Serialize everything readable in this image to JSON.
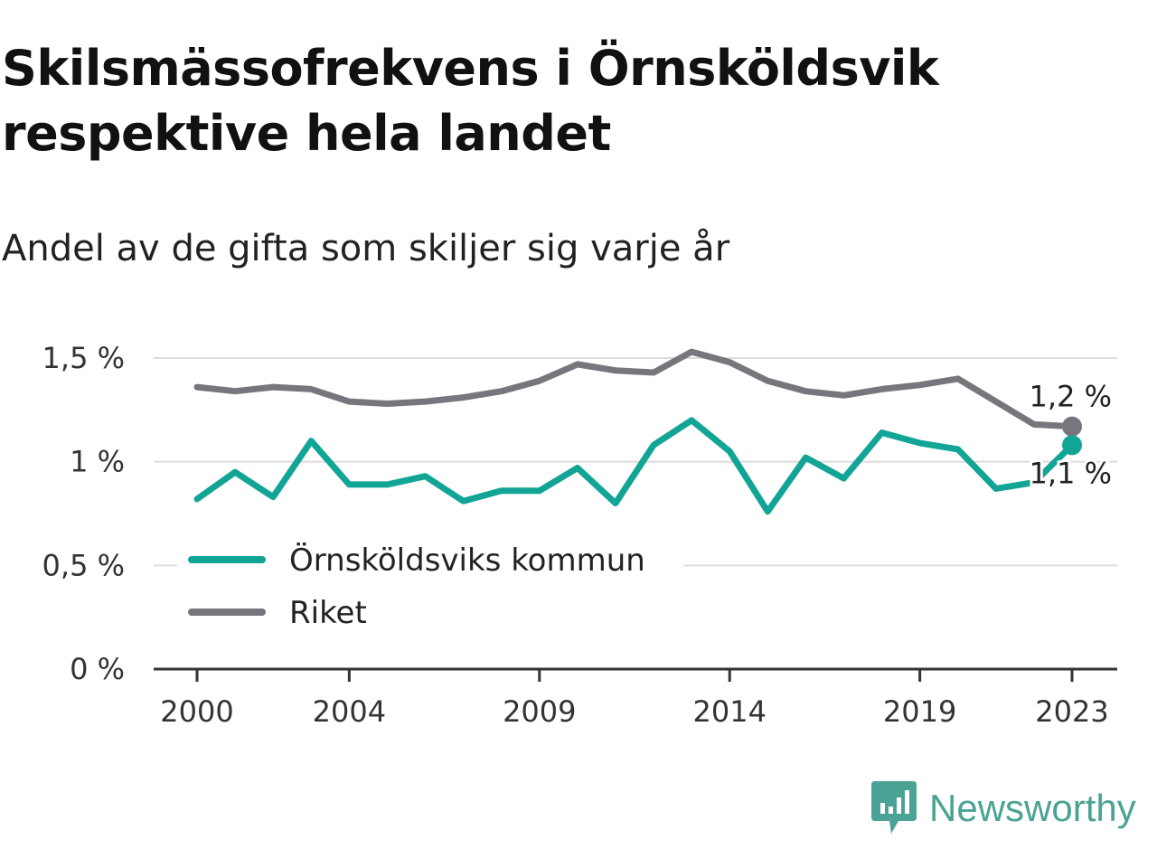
{
  "title": "Skilsmässofrekvens i Örnsköldsvik respektive hela landet",
  "subtitle": "Andel av de gifta som skiljer sig varje år",
  "brand": "Newsworthy",
  "chart_data": {
    "type": "line",
    "x": [
      2000,
      2001,
      2002,
      2003,
      2004,
      2005,
      2006,
      2007,
      2008,
      2009,
      2010,
      2011,
      2012,
      2013,
      2014,
      2015,
      2016,
      2017,
      2018,
      2019,
      2020,
      2021,
      2022,
      2023
    ],
    "xticks": [
      2000,
      2004,
      2009,
      2014,
      2019,
      2023
    ],
    "xtick_labels": [
      "2000",
      "2004",
      "2009",
      "2014",
      "2019",
      "2023"
    ],
    "yticks": [
      0,
      0.5,
      1,
      1.5
    ],
    "ytick_labels": [
      "0 %",
      "0,5 %",
      "1 %",
      "1,5 %"
    ],
    "ylim": [
      0,
      1.5
    ],
    "xlim": [
      2000,
      2023
    ],
    "grid": true,
    "legend_position": "lower-left",
    "series": [
      {
        "name": "Örnsköldsviks kommun",
        "color": "#12a596",
        "values": [
          0.82,
          0.95,
          0.83,
          1.1,
          0.89,
          0.89,
          0.93,
          0.81,
          0.86,
          0.86,
          0.97,
          0.8,
          1.08,
          1.2,
          1.05,
          0.76,
          1.02,
          0.92,
          1.14,
          1.09,
          1.06,
          0.87,
          0.9,
          1.08
        ],
        "end_label": "1,1 %"
      },
      {
        "name": "Riket",
        "color": "#76767c",
        "values": [
          1.36,
          1.34,
          1.36,
          1.35,
          1.29,
          1.28,
          1.29,
          1.31,
          1.34,
          1.39,
          1.47,
          1.44,
          1.43,
          1.53,
          1.48,
          1.39,
          1.34,
          1.32,
          1.35,
          1.37,
          1.4,
          1.29,
          1.18,
          1.17
        ],
        "end_label": "1,2 %"
      }
    ]
  }
}
